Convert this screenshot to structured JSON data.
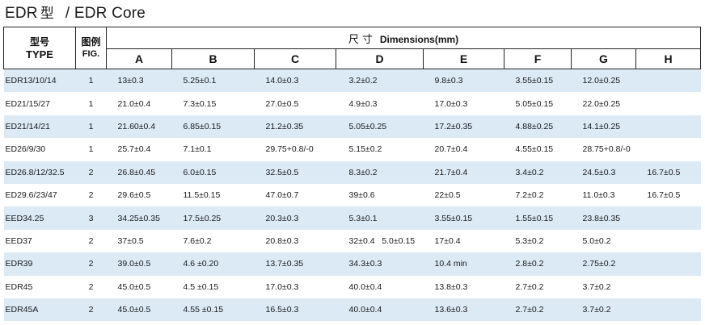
{
  "title": {
    "prefix": "EDR",
    "zh": "型",
    "suffix": "/ EDR Core"
  },
  "header": {
    "type_zh": "型号",
    "type_en": "TYPE",
    "fig_zh": "图例",
    "fig_en": "FIG.",
    "dim_zh": "尺寸",
    "dim_en": "Dimensions(mm)",
    "columns": [
      "A",
      "B",
      "C",
      "D",
      "E",
      "F",
      "G",
      "H"
    ]
  },
  "rows": [
    {
      "type": "EDR13/10/14",
      "fig": "1",
      "a": "13±0.3",
      "b": "5.25±0.1",
      "c": "14.0±0.3",
      "d": "3.2±0.2",
      "e": "9.8±0.3",
      "f": "3.55±0.15",
      "g": "12.0±0.25",
      "h": ""
    },
    {
      "type": "ED21/15/27",
      "fig": "1",
      "a": "21.0±0.4",
      "b": "7.3±0.15",
      "c": "27.0±0.5",
      "d": "4.9±0.3",
      "e": "17.0±0.3",
      "f": "5.05±0.15",
      "g": "22.0±0.25",
      "h": ""
    },
    {
      "type": "ED21/14/21",
      "fig": "1",
      "a": "21.60±0.4",
      "b": "6.85±0.15",
      "c": "21.2±0.35",
      "d": "5.05±0.25",
      "e": "17.2±0.35",
      "f": "4.88±0.25",
      "g": "14.1±0.25",
      "h": ""
    },
    {
      "type": "ED26/9/30",
      "fig": "1",
      "a": "25.7±0.4",
      "b": "7.1±0.1",
      "c": "29.75+0.8/-0",
      "d": "5.15±0.2",
      "e": "20.7±0.4",
      "f": "4.55±0.15",
      "g": "28.75+0.8/-0",
      "h": ""
    },
    {
      "type": "ED26.8/12/32.5",
      "fig": "2",
      "a": "26.8±0.45",
      "b": "6.0±0.15",
      "c": "32.5±0.5",
      "d": "8.3±0.2",
      "e": "21.7±0.4",
      "f": "3.4±0.2",
      "g": "24.5±0.3",
      "h": "16.7±0.5"
    },
    {
      "type": "ED29.6/23/47",
      "fig": "2",
      "a": "29.6±0.5",
      "b": "11.5±0.15",
      "c": "47.0±0.7",
      "d": "39±0.6",
      "e": "22±0.5",
      "f": "7.2±0.2",
      "g": "11.0±0.3",
      "h": "16.7±0.5"
    },
    {
      "type": "EED34.25",
      "fig": "3",
      "a": "34.25±0.35",
      "b": "17.5±0.25",
      "c": "20.3±0.3",
      "d": "5.3±0.1",
      "e": "3.55±0.15",
      "f": "1.55±0.15",
      "g": "23.8±0.35",
      "h": ""
    },
    {
      "type": "EED37",
      "fig": "2",
      "a": "37±0.5",
      "b": "7.6±0.2",
      "c": "20.8±0.3",
      "d": "32±0.4   5.0±0.15",
      "e": "17±0.4",
      "f": "5.3±0.2",
      "g": "5.0±0.2",
      "h": ""
    },
    {
      "type": "EDR39",
      "fig": "2",
      "a": "39.0±0.5",
      "b": "4.6 ±0.20",
      "c": "13.7±0.35",
      "d": "34.3±0.3",
      "e": "10.4 min",
      "f": "2.8±0.2",
      "g": "2.75±0.2",
      "h": ""
    },
    {
      "type": "EDR45",
      "fig": "2",
      "a": "45.0±0.5",
      "b": "4.5 ±0.15",
      "c": "17.0±0.3",
      "d": "40.0±0.4",
      "e": "13.8±0.3",
      "f": "2.7±0.2",
      "g": "3.7±0.2",
      "h": ""
    },
    {
      "type": "EDR45A",
      "fig": "2",
      "a": "45.0±0.5",
      "b": "4.55 ±0.15",
      "c": "16.5±0.3",
      "d": "40.0±0.4",
      "e": "13.6±0.3",
      "f": "2.7±0.2",
      "g": "3.7±0.2",
      "h": ""
    }
  ]
}
